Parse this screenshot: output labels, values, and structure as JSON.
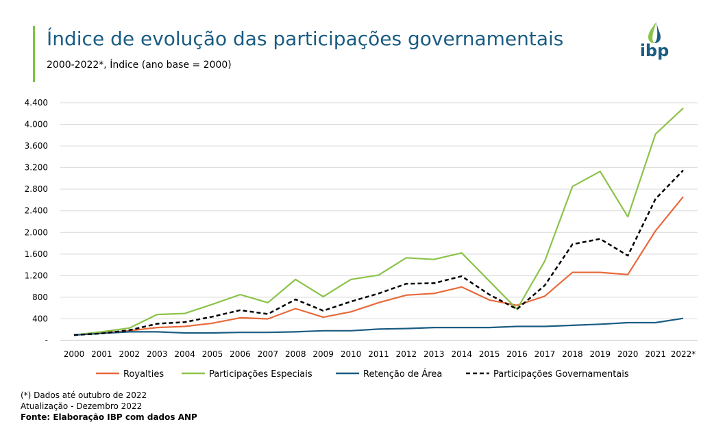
{
  "header": {
    "title": "Índice de evolução das participações governamentais",
    "subtitle": "2000-2022*, Índice (ano base = 2000)",
    "logo_text": "ibp"
  },
  "footer": {
    "note": "(*) Dados até outubro de 2022",
    "update": "Atualização - Dezembro 2022",
    "source": "Fonte: Elaboração IBP com dados ANP"
  },
  "chart_data": {
    "type": "line",
    "title": "Índice de evolução das participações governamentais",
    "subtitle": "2000-2022*, Índice (ano base = 2000)",
    "xlabel": "",
    "ylabel": "",
    "categories": [
      "2000",
      "2001",
      "2002",
      "2003",
      "2004",
      "2005",
      "2006",
      "2007",
      "2008",
      "2009",
      "2010",
      "2011",
      "2012",
      "2013",
      "2014",
      "2015",
      "2016",
      "2017",
      "2018",
      "2019",
      "2020",
      "2021",
      "2022*"
    ],
    "ylim": [
      0,
      4400
    ],
    "yticks": [
      0,
      400,
      800,
      1200,
      1600,
      2000,
      2400,
      2800,
      3200,
      3600,
      4000,
      4400
    ],
    "ytick_labels": [
      "-",
      "400",
      "800",
      "1.200",
      "1.600",
      "2.000",
      "2.400",
      "2.800",
      "3.200",
      "3.600",
      "4.000",
      "4.400"
    ],
    "grid": true,
    "legend_position": "bottom",
    "series": [
      {
        "name": "Royalties",
        "color": "#e8693a",
        "dashed": false,
        "values": [
          100,
          140,
          180,
          240,
          260,
          320,
          420,
          400,
          590,
          430,
          530,
          700,
          840,
          870,
          990,
          750,
          650,
          820,
          1260,
          1260,
          1220,
          2030,
          2660
        ]
      },
      {
        "name": "Participações Especiais",
        "color": "#8bc34a",
        "dashed": false,
        "values": [
          100,
          160,
          230,
          480,
          500,
          670,
          850,
          700,
          1130,
          810,
          1130,
          1210,
          1530,
          1500,
          1620,
          1100,
          580,
          1470,
          2850,
          3130,
          2290,
          3820,
          4300
        ]
      },
      {
        "name": "Retenção de Área",
        "color": "#1a5c82",
        "dashed": false,
        "values": [
          100,
          130,
          160,
          160,
          140,
          140,
          150,
          150,
          160,
          180,
          180,
          210,
          220,
          240,
          240,
          240,
          260,
          260,
          280,
          300,
          330,
          330,
          410
        ]
      },
      {
        "name": "Participações Governamentais",
        "color": "#000000",
        "dashed": true,
        "values": [
          100,
          130,
          190,
          310,
          340,
          440,
          560,
          490,
          760,
          550,
          720,
          870,
          1050,
          1060,
          1190,
          850,
          580,
          1020,
          1780,
          1880,
          1570,
          2620,
          3150
        ]
      }
    ]
  }
}
